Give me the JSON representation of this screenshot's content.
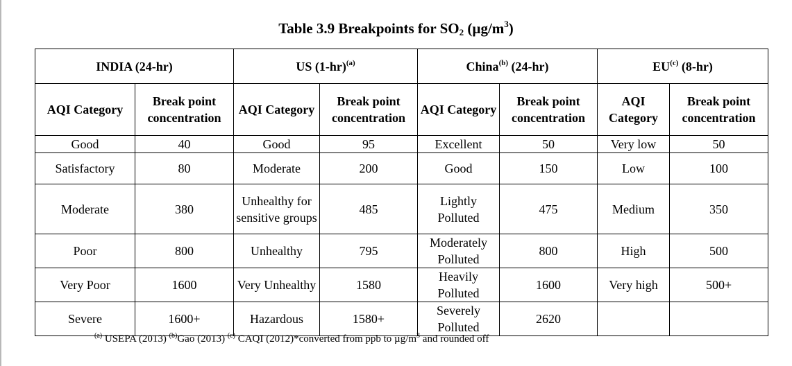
{
  "title": {
    "prefix": "Table 3.9 Breakpoints for SO",
    "sub": "2",
    "mid": " (µg/m",
    "sup": "3",
    "suffix": ")"
  },
  "standards": [
    {
      "name": "INDIA (24-hr)",
      "ref": ""
    },
    {
      "name": "US (1-hr)",
      "ref": "(a)"
    },
    {
      "name_pre": "China",
      "ref": "(b)",
      "name_post": " (24-hr)"
    },
    {
      "name_pre": "EU",
      "ref": "(c)",
      "name_post": " (8-hr)"
    }
  ],
  "sub_headers": {
    "category": "AQI Category",
    "concentration": "Break point concentration"
  },
  "rows": [
    {
      "india": [
        "Good",
        "40"
      ],
      "us": [
        "Good",
        "95"
      ],
      "china": [
        "Excellent",
        "50"
      ],
      "eu": [
        "Very low",
        "50"
      ]
    },
    {
      "india": [
        "Satisfactory",
        "80"
      ],
      "us": [
        "Moderate",
        "200"
      ],
      "china": [
        "Good",
        "150"
      ],
      "eu": [
        "Low",
        "100"
      ]
    },
    {
      "india": [
        "Moderate",
        "380"
      ],
      "us": [
        "Unhealthy for sensitive groups",
        "485"
      ],
      "china": [
        "Lightly Polluted",
        "475"
      ],
      "eu": [
        "Medium",
        "350"
      ]
    },
    {
      "india": [
        "Poor",
        "800"
      ],
      "us": [
        "Unhealthy",
        "795"
      ],
      "china": [
        "Moderately Polluted",
        "800"
      ],
      "eu": [
        "High",
        "500"
      ]
    },
    {
      "india": [
        "Very Poor",
        "1600"
      ],
      "us": [
        "Very Unhealthy",
        "1580"
      ],
      "china": [
        "Heavily Polluted",
        "1600"
      ],
      "eu": [
        "Very high",
        "500+"
      ]
    },
    {
      "india": [
        "Severe",
        "1600+"
      ],
      "us": [
        "Hazardous",
        "1580+"
      ],
      "china": [
        "Severely Polluted",
        "2620"
      ],
      "eu": [
        "",
        ""
      ]
    }
  ],
  "footnote": {
    "a_mark": "(a)",
    "a_text": " USEPA (2013) ",
    "b_mark": "(b)",
    "b_text": "Gao (2013) ",
    "c_mark": "(c)",
    "c_text": " CAQI (2012)*converted from ppb to µg/m",
    "unit_sup": "3",
    "tail": " and rounded off"
  }
}
